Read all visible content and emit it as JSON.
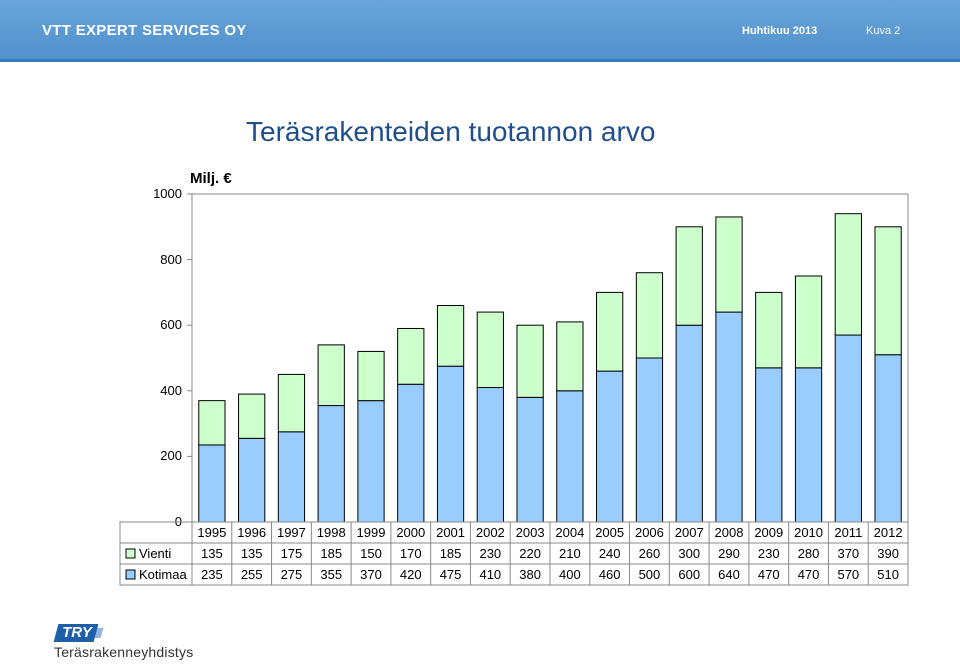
{
  "header": {
    "company": "VTT EXPERT SERVICES OY",
    "date": "Huhtikuu 2013",
    "slide": "Kuva 2"
  },
  "chart_data": {
    "type": "bar",
    "stacked": true,
    "title": "Teräsrakenteiden tuotannon arvo",
    "ylabel": "Milj. €",
    "ylim": [
      0,
      1000
    ],
    "yticks": [
      "0",
      "200",
      "400",
      "600",
      "800",
      "1000"
    ],
    "categories": [
      "1995",
      "1996",
      "1997",
      "1998",
      "1999",
      "2000",
      "2001",
      "2002",
      "2003",
      "2004",
      "2005",
      "2006",
      "2007",
      "2008",
      "2009",
      "2010",
      "2011",
      "2012"
    ],
    "series": [
      {
        "name": "Vienti",
        "color": "#ccffcc",
        "values": [
          135,
          135,
          175,
          185,
          150,
          170,
          185,
          230,
          220,
          210,
          240,
          260,
          300,
          290,
          230,
          280,
          370,
          390
        ]
      },
      {
        "name": "Kotimaa",
        "color": "#99ccff",
        "values": [
          235,
          255,
          275,
          355,
          370,
          420,
          475,
          410,
          380,
          400,
          460,
          500,
          600,
          640,
          470,
          470,
          570,
          510
        ]
      }
    ],
    "legend": "data-table"
  },
  "footer": {
    "logo_mark": "TRY",
    "logo_text": "Teräsrakenneyhdistys"
  }
}
